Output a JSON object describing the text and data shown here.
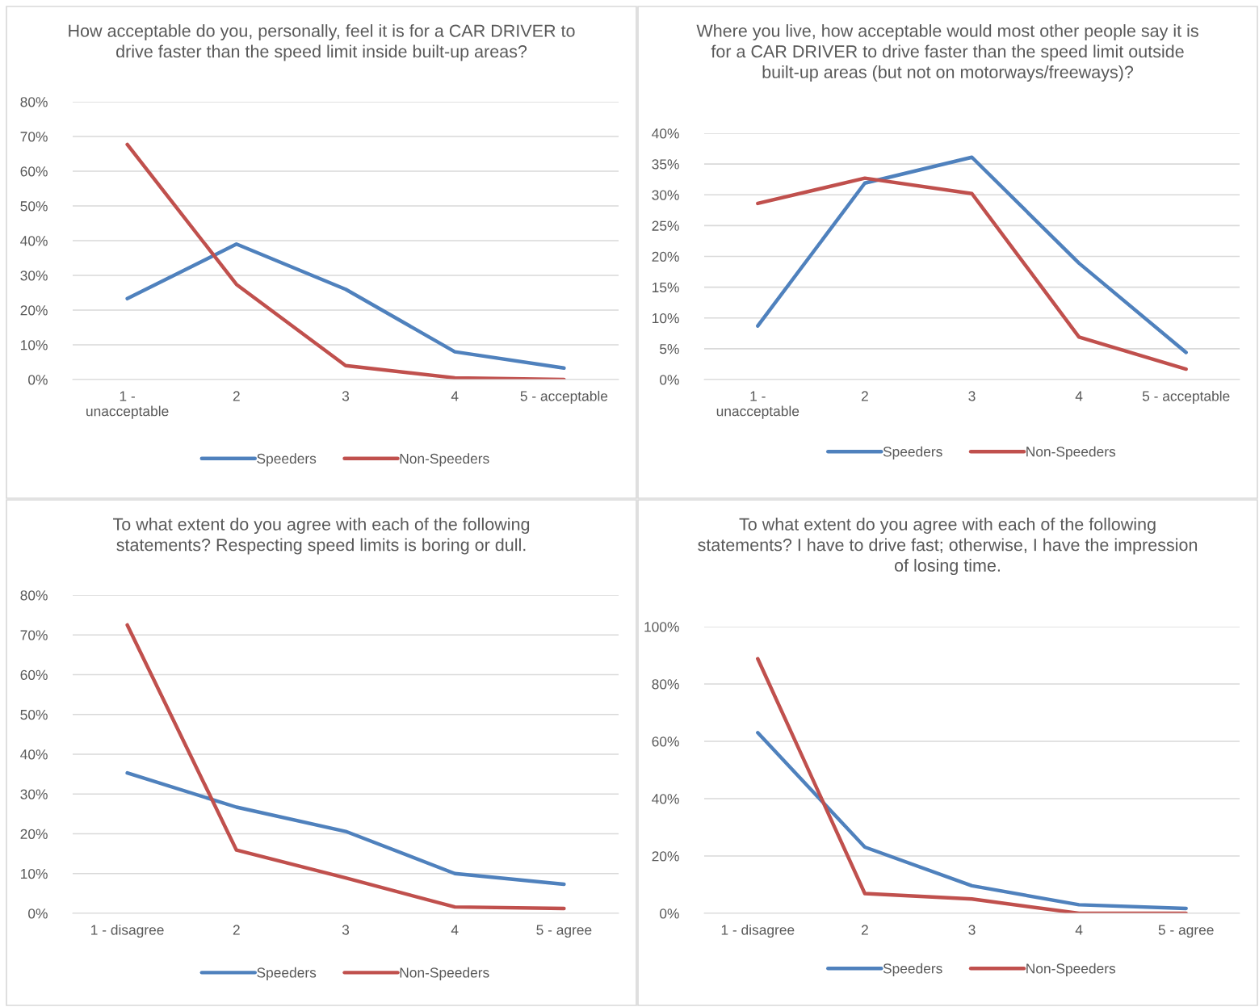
{
  "chart_data": [
    {
      "type": "line",
      "title": "How acceptable do you, personally, feel it is for a CAR DRIVER to drive faster than the speed limit inside built-up areas?",
      "categories": [
        "1 - unacceptable",
        "2",
        "3",
        "4",
        "5 - acceptable"
      ],
      "series": [
        {
          "name": "Speeders",
          "color": "#4f81bd",
          "values": [
            23.3,
            39,
            26,
            8,
            3.3
          ]
        },
        {
          "name": "Non-Speeders",
          "color": "#c0504d",
          "values": [
            67.7,
            27.4,
            4,
            0.5,
            0
          ]
        }
      ],
      "ylim": [
        0,
        80
      ],
      "yticks": [
        {
          "value": 0,
          "label": "0%"
        },
        {
          "value": 10,
          "label": "10%"
        },
        {
          "value": 20,
          "label": "20%"
        },
        {
          "value": 30,
          "label": "30%"
        },
        {
          "value": 40,
          "label": "40%"
        },
        {
          "value": 50,
          "label": "50%"
        },
        {
          "value": 60,
          "label": "60%"
        },
        {
          "value": 70,
          "label": "70%"
        },
        {
          "value": 80,
          "label": "80%"
        }
      ],
      "grid": "y",
      "legend": "bottom",
      "marker": "none",
      "line_style": "solid"
    },
    {
      "type": "line",
      "title": "Where you live, how acceptable would most other people say it is for a CAR DRIVER to drive faster than the speed limit outside built-up areas (but not on motorways/freeways)?",
      "categories": [
        "1 - unacceptable",
        "2",
        "3",
        "4",
        "5 - acceptable"
      ],
      "series": [
        {
          "name": "Speeders",
          "color": "#4f81bd",
          "values": [
            8.7,
            31.9,
            36.1,
            18.9,
            4.4
          ]
        },
        {
          "name": "Non-Speeders",
          "color": "#c0504d",
          "values": [
            28.6,
            32.7,
            30.2,
            6.9,
            1.7
          ]
        }
      ],
      "ylim": [
        0,
        40
      ],
      "yticks": [
        {
          "value": 0,
          "label": "0%"
        },
        {
          "value": 5,
          "label": "5%"
        },
        {
          "value": 10,
          "label": "10%"
        },
        {
          "value": 15,
          "label": "15%"
        },
        {
          "value": 20,
          "label": "20%"
        },
        {
          "value": 25,
          "label": "25%"
        },
        {
          "value": 30,
          "label": "30%"
        },
        {
          "value": 35,
          "label": "35%"
        },
        {
          "value": 40,
          "label": "40%"
        }
      ],
      "grid": "y",
      "legend": "bottom",
      "marker": "none",
      "line_style": "solid"
    },
    {
      "type": "line",
      "title": "To what extent do you agree with each of the following statements? Respecting speed limits is boring or dull.",
      "categories": [
        "1 - disagree",
        "2",
        "3",
        "4",
        "5 - agree"
      ],
      "series": [
        {
          "name": "Speeders",
          "color": "#4f81bd",
          "values": [
            35.3,
            26.7,
            20.6,
            10,
            7.3
          ]
        },
        {
          "name": "Non-Speeders",
          "color": "#c0504d",
          "values": [
            72.5,
            15.9,
            8.9,
            1.6,
            1.2
          ]
        }
      ],
      "ylim": [
        0,
        80
      ],
      "yticks": [
        {
          "value": 0,
          "label": "0%"
        },
        {
          "value": 10,
          "label": "10%"
        },
        {
          "value": 20,
          "label": "20%"
        },
        {
          "value": 30,
          "label": "30%"
        },
        {
          "value": 40,
          "label": "40%"
        },
        {
          "value": 50,
          "label": "50%"
        },
        {
          "value": 60,
          "label": "60%"
        },
        {
          "value": 70,
          "label": "70%"
        },
        {
          "value": 80,
          "label": "80%"
        }
      ],
      "grid": "y",
      "legend": "bottom",
      "marker": "none",
      "line_style": "solid"
    },
    {
      "type": "line",
      "title": "To what extent do you agree with each of the following statements? I have to drive fast; otherwise, I have the impression of losing time.",
      "categories": [
        "1 - disagree",
        "2",
        "3",
        "4",
        "5 - agree"
      ],
      "series": [
        {
          "name": "Speeders",
          "color": "#4f81bd",
          "values": [
            63,
            23.1,
            9.6,
            3,
            1.7
          ]
        },
        {
          "name": "Non-Speeders",
          "color": "#c0504d",
          "values": [
            88.8,
            6.9,
            5,
            0,
            0
          ]
        }
      ],
      "ylim": [
        0,
        100
      ],
      "yticks": [
        {
          "value": 0,
          "label": "0%"
        },
        {
          "value": 20,
          "label": "20%"
        },
        {
          "value": 40,
          "label": "40%"
        },
        {
          "value": 60,
          "label": "60%"
        },
        {
          "value": 80,
          "label": "80%"
        },
        {
          "value": 100,
          "label": "100%"
        }
      ],
      "grid": "y",
      "legend": "bottom",
      "marker": "none",
      "line_style": "solid"
    }
  ]
}
